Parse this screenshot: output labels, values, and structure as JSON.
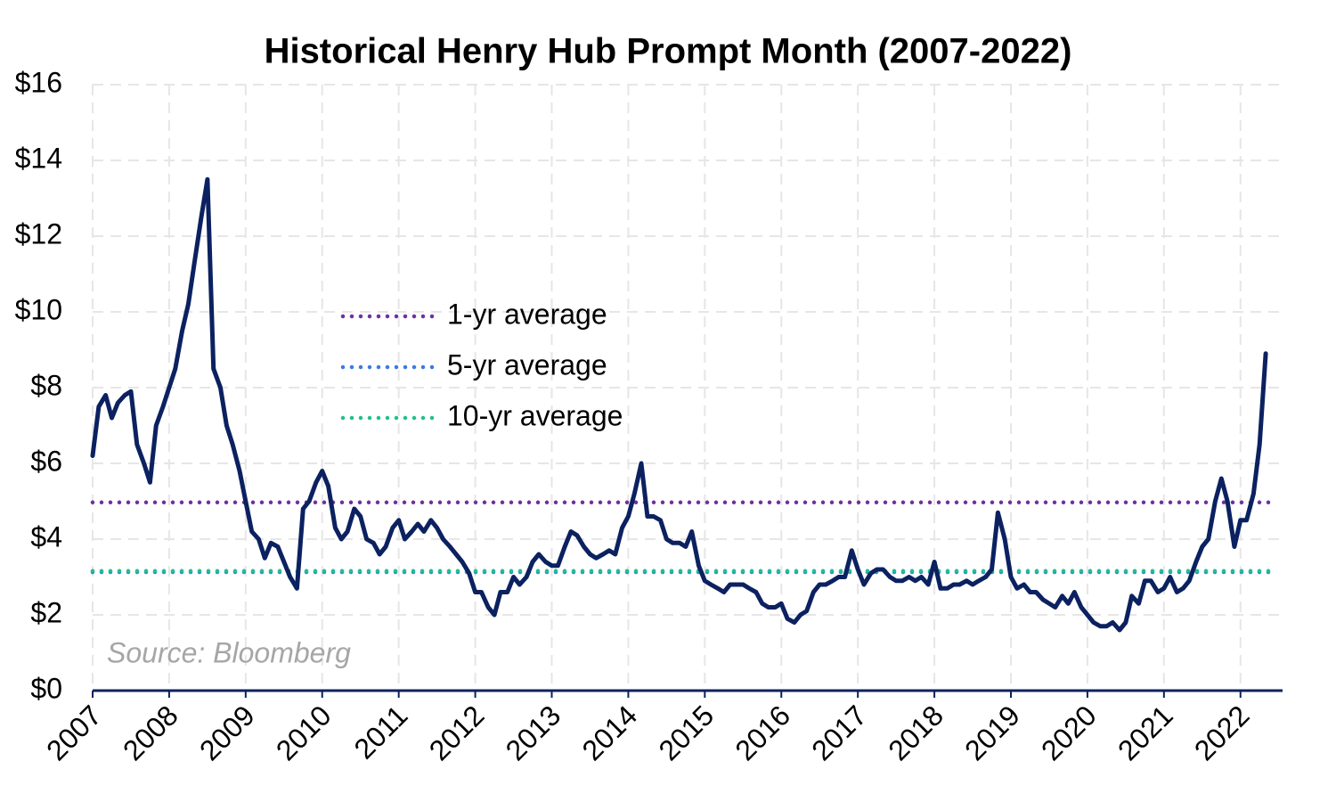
{
  "chart_data": {
    "type": "line",
    "title": "Historical Henry Hub Prompt Month (2007-2022)",
    "annotation": "Source: Bloomberg",
    "xlim": [
      2007,
      2022.55
    ],
    "xticks": [
      2007,
      2008,
      2009,
      2010,
      2011,
      2012,
      2013,
      2014,
      2015,
      2016,
      2017,
      2018,
      2019,
      2020,
      2021,
      2022
    ],
    "ylim": [
      0,
      16
    ],
    "yticks": [
      {
        "value": 0,
        "label": "$0"
      },
      {
        "value": 2,
        "label": "$2"
      },
      {
        "value": 4,
        "label": "$4"
      },
      {
        "value": 6,
        "label": "$6"
      },
      {
        "value": 8,
        "label": "$8"
      },
      {
        "value": 10,
        "label": "$10"
      },
      {
        "value": 12,
        "label": "$12"
      },
      {
        "value": 14,
        "label": "$14"
      },
      {
        "value": 16,
        "label": "$16"
      }
    ],
    "grid": true,
    "legend": "center",
    "series": [
      {
        "name": "1-yr average",
        "color": "#7030a0",
        "style": "dotted",
        "x": [
          2007,
          2022.4
        ],
        "values": [
          4.97,
          4.97
        ]
      },
      {
        "name": "5-yr average",
        "color": "#3a7be0",
        "style": "dotted",
        "x": [
          2007,
          2022.4
        ],
        "values": [
          3.13,
          3.13
        ]
      },
      {
        "name": "10-yr average",
        "color": "#1fc08e",
        "style": "dotted",
        "x": [
          2007,
          2022.4
        ],
        "values": [
          3.16,
          3.16
        ]
      },
      {
        "color": "#0b2160",
        "style": "solid",
        "x": [
          2007.0,
          2007.08,
          2007.17,
          2007.25,
          2007.33,
          2007.42,
          2007.5,
          2007.58,
          2007.67,
          2007.75,
          2007.83,
          2007.92,
          2008.0,
          2008.08,
          2008.17,
          2008.25,
          2008.33,
          2008.42,
          2008.5,
          2008.58,
          2008.67,
          2008.75,
          2008.83,
          2008.92,
          2009.0,
          2009.08,
          2009.17,
          2009.25,
          2009.33,
          2009.42,
          2009.5,
          2009.58,
          2009.67,
          2009.75,
          2009.83,
          2009.92,
          2010.0,
          2010.08,
          2010.17,
          2010.25,
          2010.33,
          2010.42,
          2010.5,
          2010.58,
          2010.67,
          2010.75,
          2010.83,
          2010.92,
          2011.0,
          2011.08,
          2011.17,
          2011.25,
          2011.33,
          2011.42,
          2011.5,
          2011.58,
          2011.67,
          2011.75,
          2011.83,
          2011.92,
          2012.0,
          2012.08,
          2012.17,
          2012.25,
          2012.33,
          2012.42,
          2012.5,
          2012.58,
          2012.67,
          2012.75,
          2012.83,
          2012.92,
          2013.0,
          2013.08,
          2013.17,
          2013.25,
          2013.33,
          2013.42,
          2013.5,
          2013.58,
          2013.67,
          2013.75,
          2013.83,
          2013.92,
          2014.0,
          2014.08,
          2014.17,
          2014.25,
          2014.33,
          2014.42,
          2014.5,
          2014.58,
          2014.67,
          2014.75,
          2014.83,
          2014.92,
          2015.0,
          2015.08,
          2015.17,
          2015.25,
          2015.33,
          2015.42,
          2015.5,
          2015.58,
          2015.67,
          2015.75,
          2015.83,
          2015.92,
          2016.0,
          2016.08,
          2016.17,
          2016.25,
          2016.33,
          2016.42,
          2016.5,
          2016.58,
          2016.67,
          2016.75,
          2016.83,
          2016.92,
          2017.0,
          2017.08,
          2017.17,
          2017.25,
          2017.33,
          2017.42,
          2017.5,
          2017.58,
          2017.67,
          2017.75,
          2017.83,
          2017.92,
          2018.0,
          2018.08,
          2018.17,
          2018.25,
          2018.33,
          2018.42,
          2018.5,
          2018.58,
          2018.67,
          2018.75,
          2018.83,
          2018.92,
          2019.0,
          2019.08,
          2019.17,
          2019.25,
          2019.33,
          2019.42,
          2019.5,
          2019.58,
          2019.67,
          2019.75,
          2019.83,
          2019.92,
          2020.0,
          2020.08,
          2020.17,
          2020.25,
          2020.33,
          2020.42,
          2020.5,
          2020.58,
          2020.67,
          2020.75,
          2020.83,
          2020.92,
          2021.0,
          2021.08,
          2021.17,
          2021.25,
          2021.33,
          2021.42,
          2021.5,
          2021.58,
          2021.67,
          2021.75,
          2021.83,
          2021.92,
          2022.0,
          2022.08,
          2022.17,
          2022.25,
          2022.33
        ],
        "values": [
          6.2,
          7.5,
          7.8,
          7.2,
          7.6,
          7.8,
          7.9,
          6.5,
          6.0,
          5.5,
          7.0,
          7.5,
          8.0,
          8.5,
          9.5,
          10.2,
          11.3,
          12.5,
          13.5,
          8.5,
          8.0,
          7.0,
          6.5,
          5.8,
          5.0,
          4.2,
          4.0,
          3.5,
          3.9,
          3.8,
          3.4,
          3.0,
          2.7,
          4.8,
          5.0,
          5.5,
          5.8,
          5.4,
          4.3,
          4.0,
          4.2,
          4.8,
          4.6,
          4.0,
          3.9,
          3.6,
          3.8,
          4.3,
          4.5,
          4.0,
          4.2,
          4.4,
          4.2,
          4.5,
          4.3,
          4.0,
          3.8,
          3.6,
          3.4,
          3.1,
          2.6,
          2.6,
          2.2,
          2.0,
          2.6,
          2.6,
          3.0,
          2.8,
          3.0,
          3.4,
          3.6,
          3.4,
          3.3,
          3.3,
          3.8,
          4.2,
          4.1,
          3.8,
          3.6,
          3.5,
          3.6,
          3.7,
          3.6,
          4.3,
          4.6,
          5.2,
          6.0,
          4.6,
          4.6,
          4.5,
          4.0,
          3.9,
          3.9,
          3.8,
          4.2,
          3.3,
          2.9,
          2.8,
          2.7,
          2.6,
          2.8,
          2.8,
          2.8,
          2.7,
          2.6,
          2.3,
          2.2,
          2.2,
          2.3,
          1.9,
          1.8,
          2.0,
          2.1,
          2.6,
          2.8,
          2.8,
          2.9,
          3.0,
          3.0,
          3.7,
          3.2,
          2.8,
          3.1,
          3.2,
          3.2,
          3.0,
          2.9,
          2.9,
          3.0,
          2.9,
          3.0,
          2.8,
          3.4,
          2.7,
          2.7,
          2.8,
          2.8,
          2.9,
          2.8,
          2.9,
          3.0,
          3.2,
          4.7,
          4.0,
          3.0,
          2.7,
          2.8,
          2.6,
          2.6,
          2.4,
          2.3,
          2.2,
          2.5,
          2.3,
          2.6,
          2.2,
          2.0,
          1.8,
          1.7,
          1.7,
          1.8,
          1.6,
          1.8,
          2.5,
          2.3,
          2.9,
          2.9,
          2.6,
          2.7,
          3.0,
          2.6,
          2.7,
          2.9,
          3.4,
          3.8,
          4.0,
          5.0,
          5.6,
          5.0,
          3.8,
          4.5,
          4.5,
          5.2,
          6.5,
          8.9
        ]
      }
    ]
  }
}
